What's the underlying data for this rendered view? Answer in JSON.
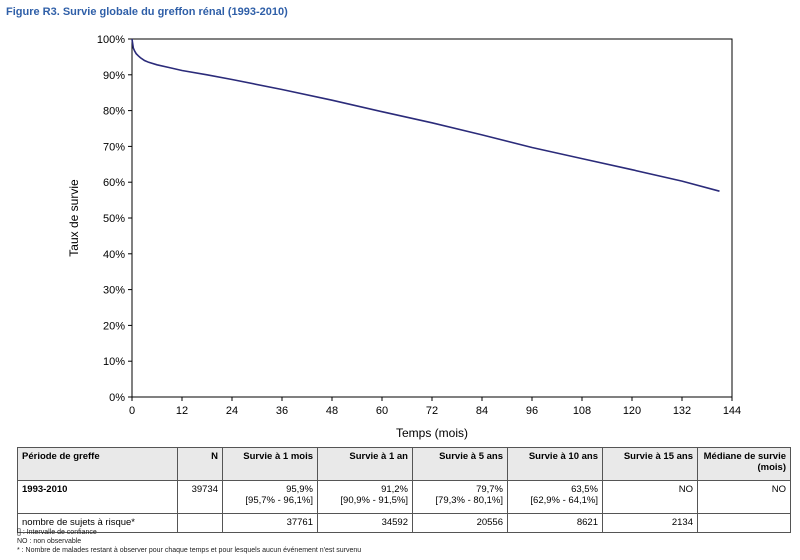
{
  "figure_title": "Figure R3. Survie globale du greffon rénal (1993-2010)",
  "chart_data": {
    "type": "line",
    "title": "",
    "xlabel": "Temps (mois)",
    "ylabel": "Taux de survie",
    "xlim": [
      0,
      144
    ],
    "ylim": [
      0,
      100
    ],
    "x_ticks": [
      0,
      12,
      24,
      36,
      48,
      60,
      72,
      84,
      96,
      108,
      120,
      132,
      144
    ],
    "y_ticks": [
      0,
      10,
      20,
      30,
      40,
      50,
      60,
      70,
      80,
      90,
      100
    ],
    "y_tick_labels": [
      "0%",
      "10%",
      "20%",
      "30%",
      "40%",
      "50%",
      "60%",
      "70%",
      "80%",
      "90%",
      "100%"
    ],
    "grid": false,
    "color": "#2b2b7a",
    "series": [
      {
        "x": [
          0,
          0.3,
          0.6,
          1,
          1.5,
          2,
          3,
          4,
          6,
          9,
          12,
          18,
          24,
          36,
          48,
          60,
          72,
          84,
          96,
          108,
          120,
          132,
          141
        ],
        "y": [
          100,
          97.5,
          96.7,
          95.9,
          95.3,
          94.8,
          94.0,
          93.5,
          92.8,
          92.0,
          91.2,
          90.0,
          88.7,
          85.9,
          82.9,
          79.7,
          76.6,
          73.2,
          69.7,
          66.6,
          63.5,
          60.3,
          57.5
        ]
      }
    ]
  },
  "table": {
    "headers": [
      "Période de greffe",
      "N",
      "Survie à 1 mois",
      "Survie à 1 an",
      "Survie à 5 ans",
      "Survie à 10 ans",
      "Survie à 15 ans",
      "Médiane de survie (mois)"
    ],
    "row1": {
      "label": "1993-2010",
      "n": "39734",
      "m1": "95,9%",
      "m1_ci": "[95,7% - 96,1%]",
      "y1": "91,2%",
      "y1_ci": "[90,9% - 91,5%]",
      "y5": "79,7%",
      "y5_ci": "[79,3% - 80,1%]",
      "y10": "63,5%",
      "y10_ci": "[62,9% - 64,1%]",
      "y15": "NO",
      "median": "NO"
    },
    "row2": {
      "label": "nombre de sujets à risque*",
      "n": "",
      "m1": "37761",
      "y1": "34592",
      "y5": "20556",
      "y10": "8621",
      "y15": "2134",
      "median": ""
    }
  },
  "notes": [
    "[] : Intervalle de confiance",
    "NO : non observable",
    "* : Nombre de malades restant à observer pour chaque temps et pour lesquels aucun événement n'est survenu"
  ]
}
